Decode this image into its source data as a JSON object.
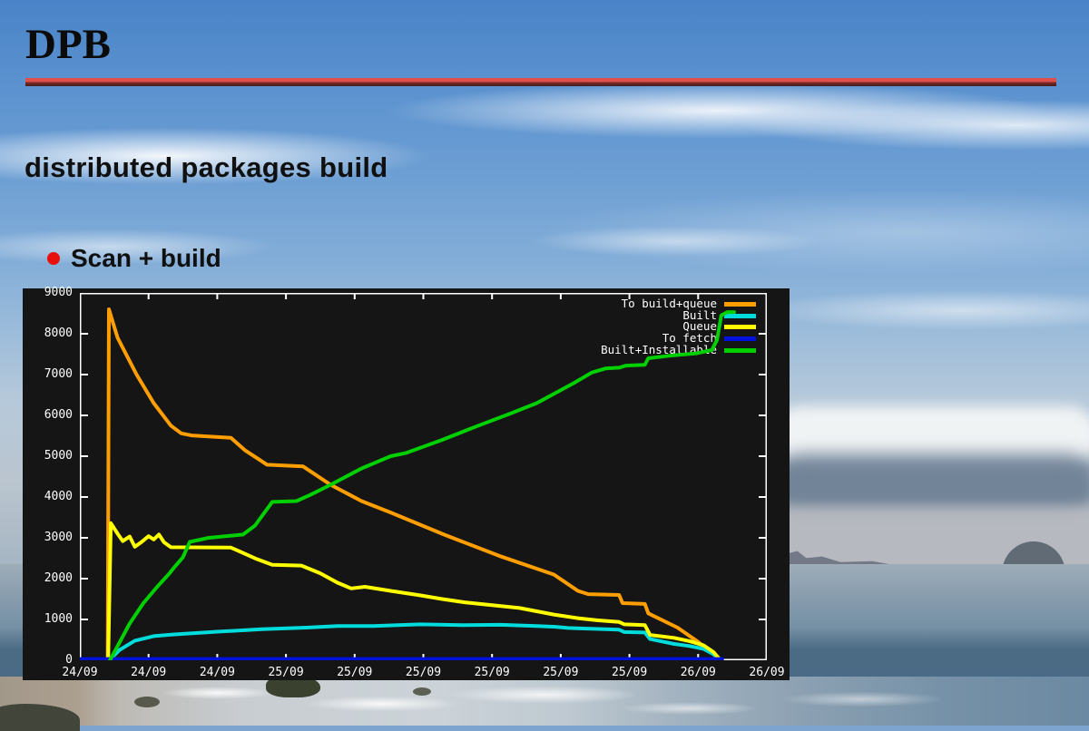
{
  "slide": {
    "title": "DPB",
    "subtitle": "distributed packages build",
    "bullet_label": "Scan + build",
    "accent_rule_top_color": "#df504c",
    "accent_rule_bottom_color": "#461b1a",
    "bullet_color": "#e8100c"
  },
  "chart_data": {
    "type": "line",
    "title": "",
    "xlabel": "",
    "ylabel": "",
    "background": "#151515",
    "text_color": "#ffffff",
    "grid": false,
    "legend_position": "top-right",
    "x_axis": {
      "range_hours": [
        0,
        40
      ],
      "tick_interval_hours": 4,
      "tick_labels": [
        "24/09",
        "24/09",
        "24/09",
        "25/09",
        "25/09",
        "25/09",
        "25/09",
        "25/09",
        "25/09",
        "26/09",
        "26/09"
      ]
    },
    "y_axis": {
      "range": [
        0,
        9000
      ],
      "ticks": [
        0,
        1000,
        2000,
        3000,
        4000,
        5000,
        6000,
        7000,
        8000,
        9000
      ]
    },
    "series": [
      {
        "name": "To build+queue",
        "color": "#ff9e00",
        "width": 4,
        "points": [
          [
            1.62,
            0
          ],
          [
            1.69,
            8600
          ],
          [
            2.2,
            7900
          ],
          [
            3.3,
            7000
          ],
          [
            4.3,
            6300
          ],
          [
            5.3,
            5750
          ],
          [
            5.9,
            5560
          ],
          [
            6.5,
            5510
          ],
          [
            8.8,
            5450
          ],
          [
            9.6,
            5150
          ],
          [
            10.9,
            4790
          ],
          [
            13.0,
            4750
          ],
          [
            14.6,
            4300
          ],
          [
            16.4,
            3900
          ],
          [
            18.1,
            3620
          ],
          [
            21.2,
            3080
          ],
          [
            24.4,
            2560
          ],
          [
            27.6,
            2100
          ],
          [
            29.0,
            1700
          ],
          [
            29.6,
            1620
          ],
          [
            31.4,
            1600
          ],
          [
            31.6,
            1400
          ],
          [
            32.9,
            1380
          ],
          [
            33.1,
            1150
          ],
          [
            34.8,
            800
          ],
          [
            36.0,
            450
          ],
          [
            37.1,
            80
          ],
          [
            37.35,
            0
          ]
        ]
      },
      {
        "name": "Built",
        "color": "#00dcdc",
        "width": 4,
        "points": [
          [
            1.72,
            0
          ],
          [
            2.3,
            250
          ],
          [
            3.2,
            480
          ],
          [
            4.3,
            590
          ],
          [
            5.4,
            630
          ],
          [
            8.0,
            700
          ],
          [
            10.6,
            760
          ],
          [
            13.2,
            800
          ],
          [
            15.0,
            840
          ],
          [
            17.1,
            840
          ],
          [
            19.8,
            880
          ],
          [
            22.4,
            860
          ],
          [
            24.5,
            870
          ],
          [
            26.6,
            840
          ],
          [
            27.7,
            820
          ],
          [
            28.4,
            790
          ],
          [
            30.0,
            770
          ],
          [
            31.4,
            750
          ],
          [
            31.7,
            690
          ],
          [
            32.9,
            680
          ],
          [
            33.2,
            520
          ],
          [
            34.6,
            400
          ],
          [
            35.5,
            350
          ],
          [
            36.3,
            280
          ],
          [
            36.9,
            150
          ],
          [
            37.25,
            0
          ]
        ]
      },
      {
        "name": "Queue",
        "color": "#ffff00",
        "width": 4,
        "points": [
          [
            1.65,
            0
          ],
          [
            1.8,
            3360
          ],
          [
            2.2,
            3100
          ],
          [
            2.5,
            2920
          ],
          [
            2.9,
            3030
          ],
          [
            3.2,
            2780
          ],
          [
            3.6,
            2900
          ],
          [
            4.0,
            3040
          ],
          [
            4.3,
            2960
          ],
          [
            4.6,
            3080
          ],
          [
            4.9,
            2890
          ],
          [
            5.3,
            2770
          ],
          [
            8.8,
            2760
          ],
          [
            9.4,
            2650
          ],
          [
            10.3,
            2480
          ],
          [
            11.2,
            2340
          ],
          [
            12.9,
            2320
          ],
          [
            14.0,
            2130
          ],
          [
            15.0,
            1900
          ],
          [
            15.8,
            1760
          ],
          [
            16.6,
            1800
          ],
          [
            18.1,
            1700
          ],
          [
            19.8,
            1590
          ],
          [
            21.1,
            1500
          ],
          [
            22.4,
            1420
          ],
          [
            24.0,
            1350
          ],
          [
            25.6,
            1280
          ],
          [
            27.6,
            1120
          ],
          [
            29.0,
            1030
          ],
          [
            30.1,
            980
          ],
          [
            31.4,
            940
          ],
          [
            31.7,
            880
          ],
          [
            32.9,
            860
          ],
          [
            33.2,
            620
          ],
          [
            34.6,
            550
          ],
          [
            35.5,
            470
          ],
          [
            36.3,
            370
          ],
          [
            36.9,
            200
          ],
          [
            37.3,
            0
          ]
        ]
      },
      {
        "name": "To fetch",
        "color": "#0011dd",
        "width": 4,
        "points": [
          [
            0,
            30
          ],
          [
            37.4,
            30
          ]
        ]
      },
      {
        "name": "Built+Installable",
        "color": "#00d000",
        "width": 4,
        "points": [
          [
            1.75,
            0
          ],
          [
            2.2,
            350
          ],
          [
            2.9,
            900
          ],
          [
            3.7,
            1400
          ],
          [
            4.5,
            1800
          ],
          [
            5.2,
            2120
          ],
          [
            5.5,
            2280
          ],
          [
            6.0,
            2520
          ],
          [
            6.4,
            2900
          ],
          [
            7.5,
            3000
          ],
          [
            9.5,
            3080
          ],
          [
            10.2,
            3300
          ],
          [
            11.2,
            3880
          ],
          [
            12.6,
            3900
          ],
          [
            13.4,
            4050
          ],
          [
            14.6,
            4300
          ],
          [
            16.4,
            4700
          ],
          [
            18.1,
            5000
          ],
          [
            19.0,
            5080
          ],
          [
            21.1,
            5400
          ],
          [
            23.2,
            5750
          ],
          [
            25.1,
            6050
          ],
          [
            26.6,
            6300
          ],
          [
            27.7,
            6550
          ],
          [
            28.8,
            6800
          ],
          [
            29.8,
            7050
          ],
          [
            30.6,
            7150
          ],
          [
            31.4,
            7170
          ],
          [
            31.8,
            7220
          ],
          [
            32.9,
            7240
          ],
          [
            33.1,
            7400
          ],
          [
            34.3,
            7460
          ],
          [
            35.9,
            7520
          ],
          [
            36.8,
            7600
          ],
          [
            37.1,
            7850
          ],
          [
            37.35,
            8450
          ],
          [
            37.7,
            8530
          ],
          [
            38.1,
            8530
          ]
        ]
      }
    ]
  }
}
